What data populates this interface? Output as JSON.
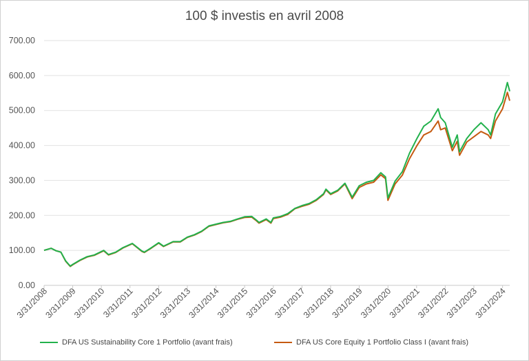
{
  "chart_data": {
    "type": "line",
    "title": "100 $ investis en avril 2008",
    "xlabel": "",
    "ylabel": "",
    "ylim": [
      0,
      700
    ],
    "yticks": [
      "0.00",
      "100.00",
      "200.00",
      "300.00",
      "400.00",
      "500.00",
      "600.00",
      "700.00"
    ],
    "xticks": [
      "3/31/2008",
      "3/31/2009",
      "3/31/2010",
      "3/31/2011",
      "3/31/2012",
      "3/31/2013",
      "3/31/2014",
      "3/31/2015",
      "3/31/2016",
      "3/31/2017",
      "3/31/2018",
      "3/31/2019",
      "3/31/2020",
      "3/31/2021",
      "3/31/2022",
      "3/31/2023",
      "3/31/2024"
    ],
    "grid": "horizontal",
    "legend_position": "bottom",
    "series": [
      {
        "name": "DFA US Sustainability Core 1 Portfolio (avant frais)",
        "color": "#22b14c",
        "points": [
          [
            "2008-03-31",
            100
          ],
          [
            "2008-06-30",
            106
          ],
          [
            "2008-08-31",
            99
          ],
          [
            "2008-10-31",
            95
          ],
          [
            "2008-12-31",
            70
          ],
          [
            "2009-02-28",
            55
          ],
          [
            "2009-03-31",
            60
          ],
          [
            "2009-06-30",
            72
          ],
          [
            "2009-09-30",
            82
          ],
          [
            "2009-12-31",
            87
          ],
          [
            "2010-04-30",
            100
          ],
          [
            "2010-06-30",
            88
          ],
          [
            "2010-09-30",
            95
          ],
          [
            "2010-12-31",
            108
          ],
          [
            "2011-04-30",
            120
          ],
          [
            "2011-08-31",
            98
          ],
          [
            "2011-09-30",
            95
          ],
          [
            "2011-12-31",
            108
          ],
          [
            "2012-03-31",
            122
          ],
          [
            "2012-05-31",
            112
          ],
          [
            "2012-09-30",
            125
          ],
          [
            "2012-12-31",
            125
          ],
          [
            "2013-03-31",
            138
          ],
          [
            "2013-06-30",
            145
          ],
          [
            "2013-09-30",
            155
          ],
          [
            "2013-12-31",
            170
          ],
          [
            "2014-03-31",
            175
          ],
          [
            "2014-06-30",
            180
          ],
          [
            "2014-09-30",
            183
          ],
          [
            "2014-12-31",
            190
          ],
          [
            "2015-03-31",
            196
          ],
          [
            "2015-06-30",
            197
          ],
          [
            "2015-08-31",
            186
          ],
          [
            "2015-09-30",
            180
          ],
          [
            "2015-12-31",
            190
          ],
          [
            "2016-02-29",
            180
          ],
          [
            "2016-03-31",
            193
          ],
          [
            "2016-06-30",
            197
          ],
          [
            "2016-09-30",
            205
          ],
          [
            "2016-12-31",
            220
          ],
          [
            "2017-03-31",
            228
          ],
          [
            "2017-06-30",
            234
          ],
          [
            "2017-09-30",
            245
          ],
          [
            "2017-12-31",
            262
          ],
          [
            "2018-01-31",
            275
          ],
          [
            "2018-03-31",
            262
          ],
          [
            "2018-06-30",
            272
          ],
          [
            "2018-09-30",
            292
          ],
          [
            "2018-12-31",
            252
          ],
          [
            "2019-03-31",
            285
          ],
          [
            "2019-06-30",
            295
          ],
          [
            "2019-09-30",
            300
          ],
          [
            "2019-12-31",
            322
          ],
          [
            "2020-02-29",
            310
          ],
          [
            "2020-03-31",
            250
          ],
          [
            "2020-06-30",
            298
          ],
          [
            "2020-09-30",
            325
          ],
          [
            "2020-12-31",
            378
          ],
          [
            "2021-03-31",
            418
          ],
          [
            "2021-06-30",
            455
          ],
          [
            "2021-09-30",
            470
          ],
          [
            "2021-12-31",
            505
          ],
          [
            "2022-01-31",
            480
          ],
          [
            "2022-03-31",
            465
          ],
          [
            "2022-06-30",
            395
          ],
          [
            "2022-08-31",
            430
          ],
          [
            "2022-09-30",
            382
          ],
          [
            "2022-12-31",
            420
          ],
          [
            "2023-03-31",
            445
          ],
          [
            "2023-06-30",
            465
          ],
          [
            "2023-09-30",
            445
          ],
          [
            "2023-10-31",
            430
          ],
          [
            "2023-12-31",
            490
          ],
          [
            "2024-03-31",
            525
          ],
          [
            "2024-05-31",
            580
          ],
          [
            "2024-06-30",
            555
          ]
        ]
      },
      {
        "name": "DFA US Core Equity 1 Portfolio Class I (avant frais)",
        "color": "#c55a11",
        "points": [
          [
            "2008-03-31",
            100
          ],
          [
            "2008-06-30",
            106
          ],
          [
            "2008-08-31",
            99
          ],
          [
            "2008-10-31",
            95
          ],
          [
            "2008-12-31",
            69
          ],
          [
            "2009-02-28",
            54
          ],
          [
            "2009-03-31",
            59
          ],
          [
            "2009-06-30",
            71
          ],
          [
            "2009-09-30",
            81
          ],
          [
            "2009-12-31",
            86
          ],
          [
            "2010-04-30",
            99
          ],
          [
            "2010-06-30",
            87
          ],
          [
            "2010-09-30",
            94
          ],
          [
            "2010-12-31",
            107
          ],
          [
            "2011-04-30",
            119
          ],
          [
            "2011-08-31",
            97
          ],
          [
            "2011-09-30",
            94
          ],
          [
            "2011-12-31",
            107
          ],
          [
            "2012-03-31",
            121
          ],
          [
            "2012-05-31",
            111
          ],
          [
            "2012-09-30",
            124
          ],
          [
            "2012-12-31",
            124
          ],
          [
            "2013-03-31",
            137
          ],
          [
            "2013-06-30",
            144
          ],
          [
            "2013-09-30",
            154
          ],
          [
            "2013-12-31",
            169
          ],
          [
            "2014-03-31",
            174
          ],
          [
            "2014-06-30",
            179
          ],
          [
            "2014-09-30",
            182
          ],
          [
            "2014-12-31",
            189
          ],
          [
            "2015-03-31",
            194
          ],
          [
            "2015-06-30",
            195
          ],
          [
            "2015-08-31",
            184
          ],
          [
            "2015-09-30",
            178
          ],
          [
            "2015-12-31",
            188
          ],
          [
            "2016-02-29",
            178
          ],
          [
            "2016-03-31",
            191
          ],
          [
            "2016-06-30",
            195
          ],
          [
            "2016-09-30",
            203
          ],
          [
            "2016-12-31",
            219
          ],
          [
            "2017-03-31",
            226
          ],
          [
            "2017-06-30",
            232
          ],
          [
            "2017-09-30",
            243
          ],
          [
            "2017-12-31",
            260
          ],
          [
            "2018-01-31",
            273
          ],
          [
            "2018-03-31",
            260
          ],
          [
            "2018-06-30",
            270
          ],
          [
            "2018-09-30",
            290
          ],
          [
            "2018-12-31",
            248
          ],
          [
            "2019-03-31",
            280
          ],
          [
            "2019-06-30",
            290
          ],
          [
            "2019-09-30",
            295
          ],
          [
            "2019-12-31",
            316
          ],
          [
            "2020-02-29",
            305
          ],
          [
            "2020-03-31",
            243
          ],
          [
            "2020-06-30",
            290
          ],
          [
            "2020-09-30",
            315
          ],
          [
            "2020-12-31",
            362
          ],
          [
            "2021-03-31",
            398
          ],
          [
            "2021-06-30",
            430
          ],
          [
            "2021-09-30",
            440
          ],
          [
            "2021-12-31",
            470
          ],
          [
            "2022-01-31",
            445
          ],
          [
            "2022-03-31",
            450
          ],
          [
            "2022-06-30",
            385
          ],
          [
            "2022-08-31",
            412
          ],
          [
            "2022-09-30",
            372
          ],
          [
            "2022-12-31",
            410
          ],
          [
            "2023-03-31",
            425
          ],
          [
            "2023-06-30",
            440
          ],
          [
            "2023-09-30",
            430
          ],
          [
            "2023-10-31",
            420
          ],
          [
            "2023-12-31",
            470
          ],
          [
            "2024-03-31",
            505
          ],
          [
            "2024-05-31",
            552
          ],
          [
            "2024-06-30",
            528
          ]
        ]
      }
    ]
  }
}
